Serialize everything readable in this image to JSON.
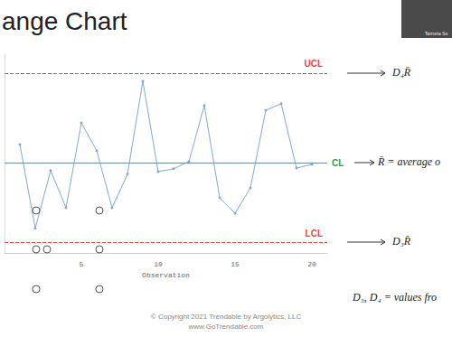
{
  "chart_data": {
    "type": "line",
    "title": "ange Chart",
    "x_label": "Observation",
    "x": [
      1,
      2,
      3,
      4,
      5,
      6,
      7,
      8,
      9,
      10,
      11,
      12,
      13,
      14,
      15,
      16,
      17,
      18,
      19,
      20
    ],
    "values": [
      3.0,
      0.68,
      2.28,
      1.25,
      3.6,
      2.83,
      1.25,
      2.18,
      4.75,
      2.25,
      2.33,
      2.53,
      4.08,
      1.53,
      1.1,
      1.8,
      3.95,
      4.13,
      2.35,
      2.45
    ],
    "color": "#7eaad4",
    "marker": "circle",
    "line_style": "solid",
    "xlim": [
      0,
      21
    ],
    "xticks": [
      5,
      10,
      15,
      20
    ],
    "ylim": [
      0,
      5.5
    ],
    "yticks": [
      0,
      1,
      2,
      3,
      4,
      5
    ],
    "tick_labels": "x",
    "grid": false,
    "control_lines": [
      {
        "label": "UCL",
        "value": 4.98,
        "color": "#e8463c",
        "line_style": "dashed"
      },
      {
        "label": "CL",
        "value": 2.5,
        "color": "#2e9e3e",
        "line_style": "solid"
      },
      {
        "label": "LCL",
        "value": 0.3,
        "color": "#e8463c",
        "line_style": "dashed"
      }
    ]
  },
  "annotations": [
    "D₄R̄",
    "R̄ = average o",
    "D₃R̄",
    "D₃, D₄ = values fro"
  ],
  "footer": [
    "© Copyright 2021    Trendable by Argolytics, LLC",
    "www.GoTrendable.com"
  ],
  "presenter": "Tamela Se"
}
